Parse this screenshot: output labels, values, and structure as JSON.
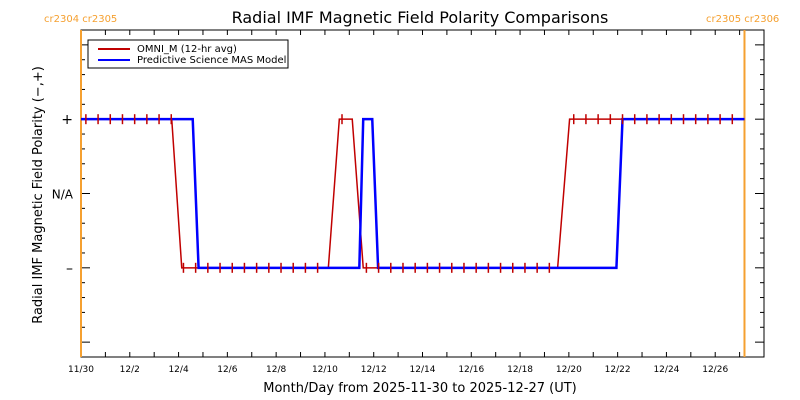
{
  "chart_data": {
    "type": "line",
    "title": "Radial IMF Magnetic Field Polarity Comparisons",
    "xlabel": "Month/Day from 2025-11-30 to 2025-12-27 (UT)",
    "ylabel": "Radial IMF Magnetic Field Polarity (−,+)",
    "x_start_date": "2025-11-30",
    "xlim_days": [
      0,
      28
    ],
    "ylim": [
      -2.2,
      2.2
    ],
    "x_tick_labels": [
      "11/30",
      "12/2",
      "12/4",
      "12/6",
      "12/8",
      "12/10",
      "12/12",
      "12/14",
      "12/16",
      "12/18",
      "12/20",
      "12/22",
      "12/24",
      "12/26"
    ],
    "y_ticks": [
      {
        "value": 1,
        "label": "+"
      },
      {
        "value": 0,
        "label": "N/A"
      },
      {
        "value": -1,
        "label": "–"
      }
    ],
    "grid": false,
    "legend_placement": "top-left",
    "carrington_markers": [
      {
        "day": 0,
        "label": "cr2304 cr2305",
        "side": "left"
      },
      {
        "day": 27.2,
        "label": "cr2305 cr2306",
        "side": "right"
      }
    ],
    "series": [
      {
        "name": "OMNI_M (12-hr avg)",
        "color": "#c00000",
        "markers": "plus",
        "points": [
          [
            0,
            1
          ],
          [
            3.72,
            1
          ],
          [
            4.13,
            -1
          ],
          [
            10.14,
            -1
          ],
          [
            10.59,
            1
          ],
          [
            11.12,
            1
          ],
          [
            11.57,
            -1
          ],
          [
            19.54,
            -1
          ],
          [
            20.03,
            1
          ],
          [
            27.2,
            1
          ]
        ]
      },
      {
        "name": "Predictive Science MAS Model",
        "color": "#0000ff",
        "points": [
          [
            0,
            1
          ],
          [
            4.58,
            1
          ],
          [
            4.82,
            -1
          ],
          [
            11.41,
            -1
          ],
          [
            11.57,
            1
          ],
          [
            11.94,
            1
          ],
          [
            12.18,
            -1
          ],
          [
            21.95,
            -1
          ],
          [
            22.2,
            1
          ],
          [
            27.2,
            1
          ]
        ]
      }
    ],
    "marker_color": "#f5a030"
  }
}
